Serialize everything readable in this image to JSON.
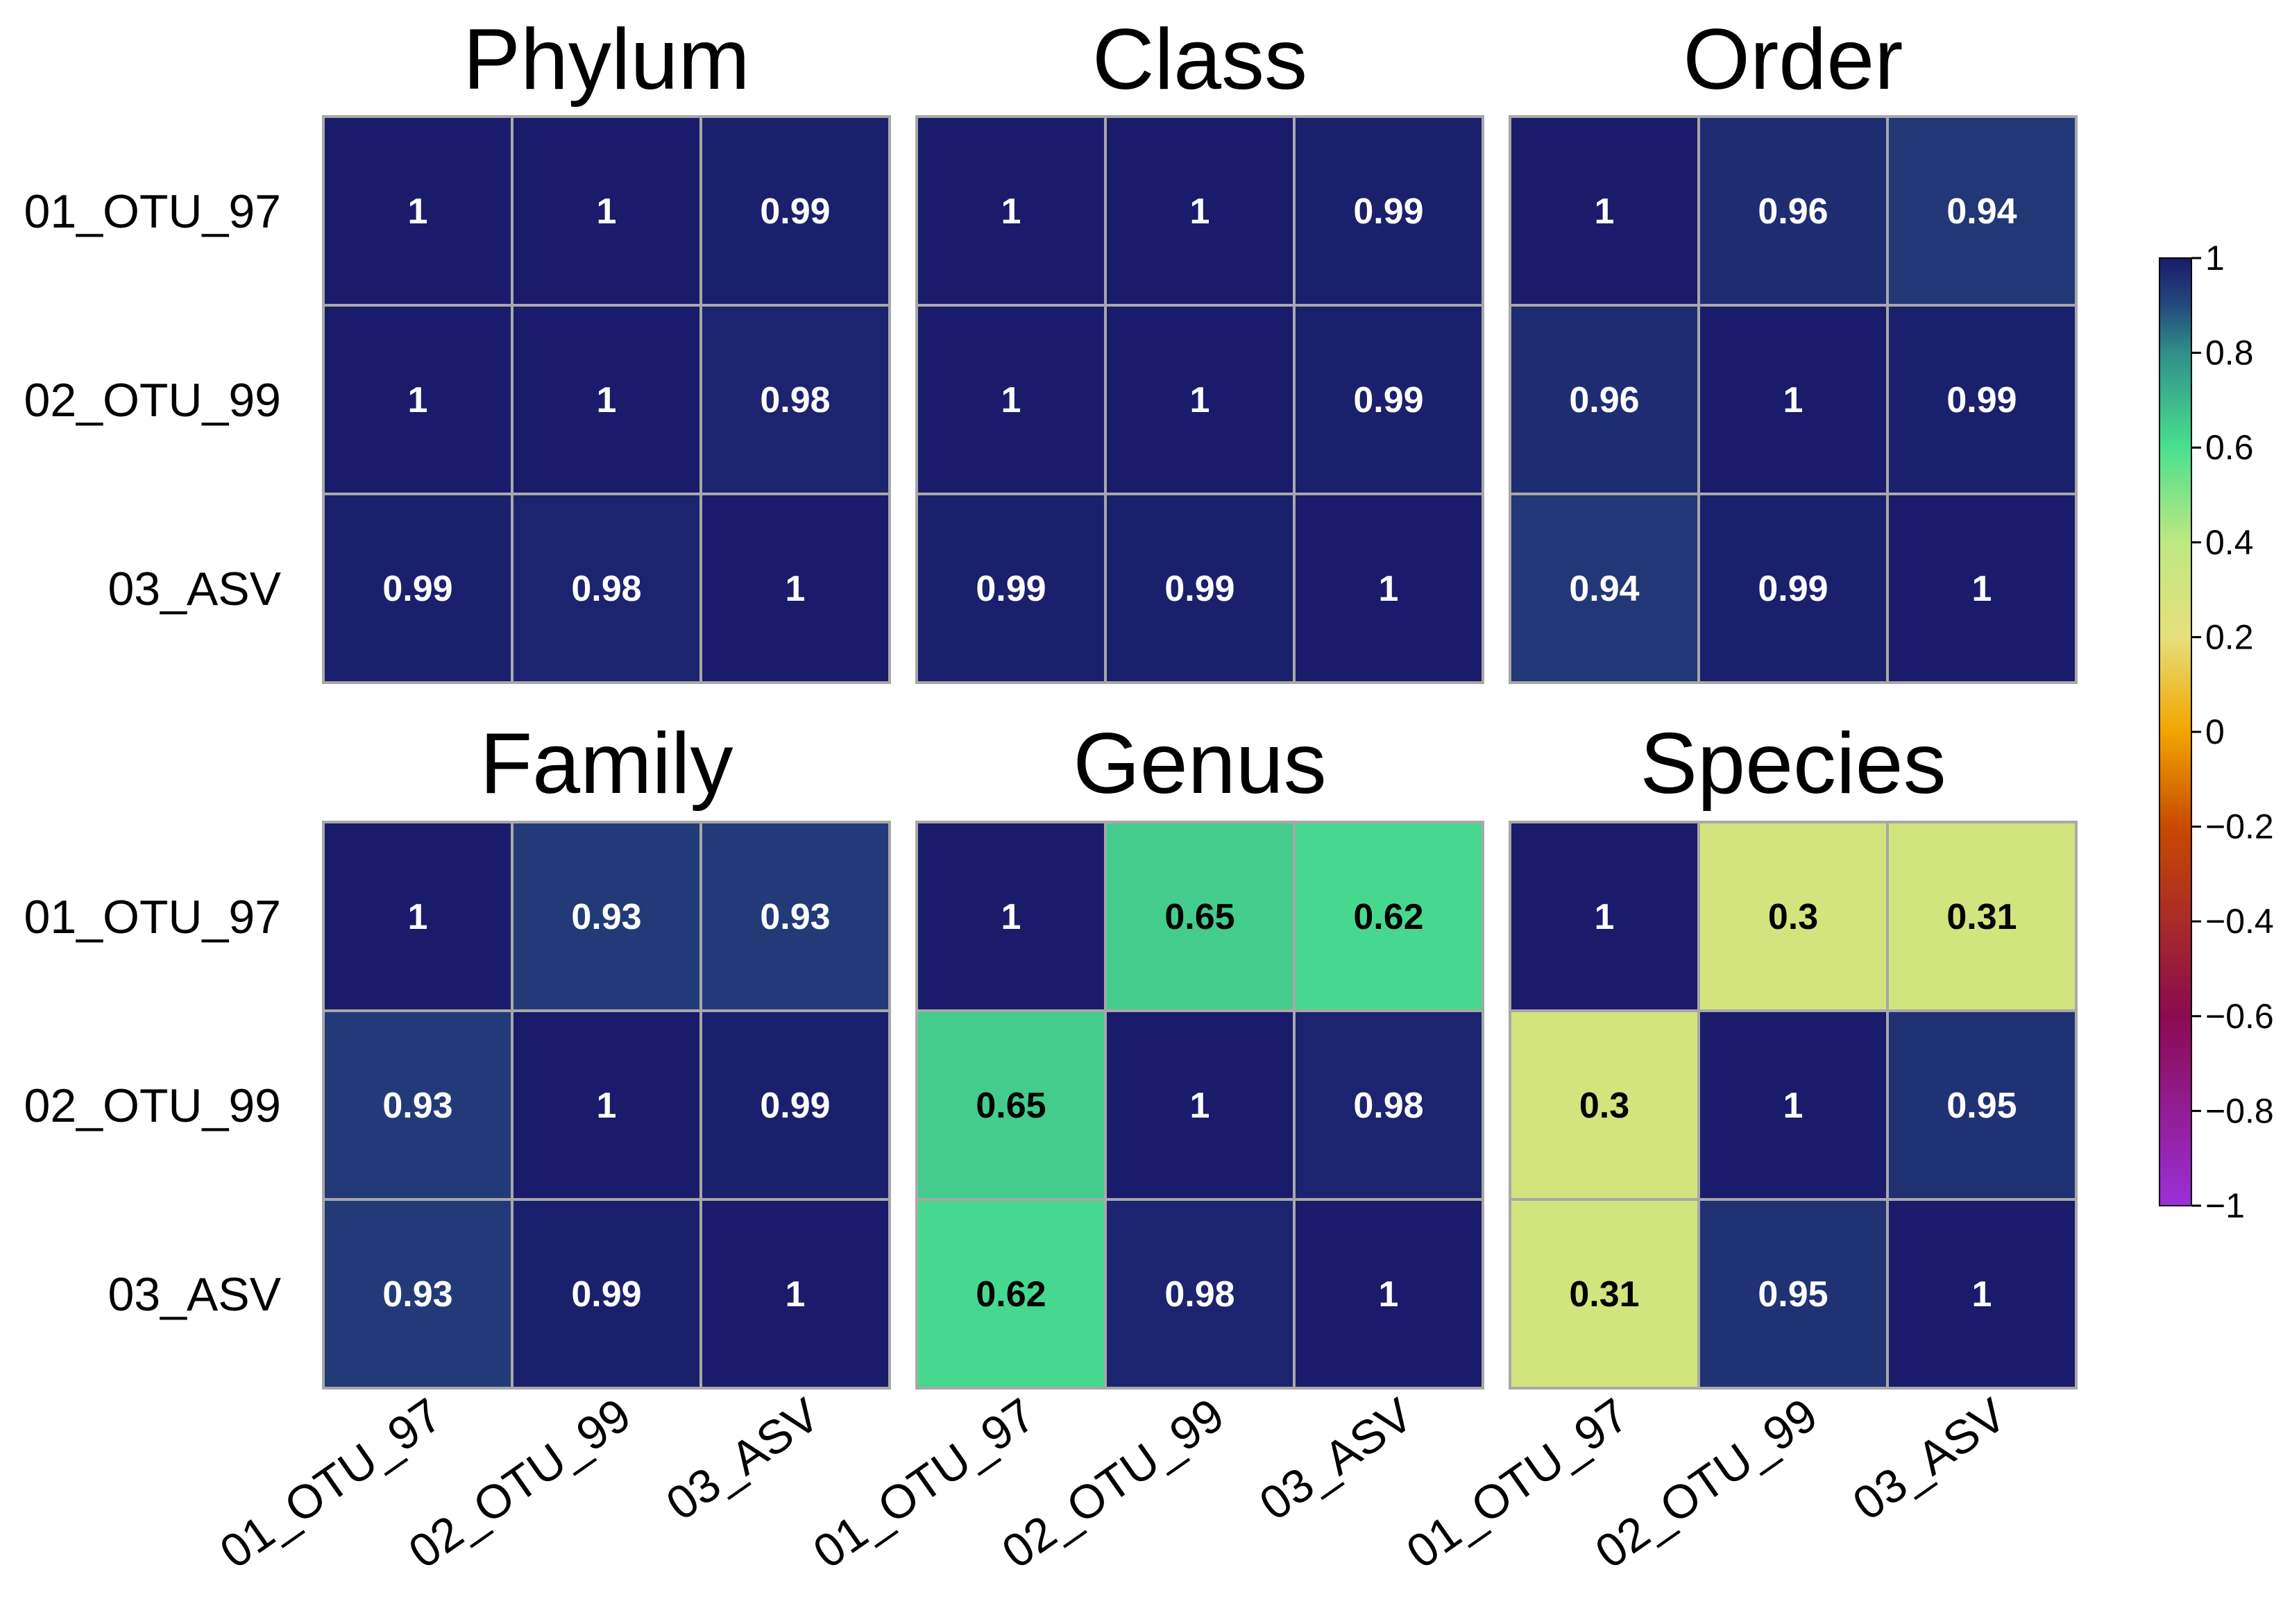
{
  "chart_data": {
    "type": "heatmap",
    "row_labels": [
      "01_OTU_97",
      "02_OTU_99",
      "03_ASV"
    ],
    "col_labels": [
      "01_OTU_97",
      "02_OTU_99",
      "03_ASV"
    ],
    "vmin": -1,
    "vmax": 1,
    "colormap_stops": [
      {
        "value": -1,
        "color": "#9b30d9"
      },
      {
        "value": -0.6,
        "color": "#8b0a50"
      },
      {
        "value": -0.2,
        "color": "#c84a00"
      },
      {
        "value": 0,
        "color": "#f2a400"
      },
      {
        "value": 0.2,
        "color": "#e6df7a"
      },
      {
        "value": 0.4,
        "color": "#bfe882"
      },
      {
        "value": 0.6,
        "color": "#4ae08f"
      },
      {
        "value": 0.8,
        "color": "#2f8f8a"
      },
      {
        "value": 0.9,
        "color": "#25497d"
      },
      {
        "value": 1,
        "color": "#1a1b6b"
      }
    ],
    "colorbar_ticks": [
      {
        "value": 1,
        "label": "1"
      },
      {
        "value": 0.8,
        "label": "0.8"
      },
      {
        "value": 0.6,
        "label": "0.6"
      },
      {
        "value": 0.4,
        "label": "0.4"
      },
      {
        "value": 0.2,
        "label": "0.2"
      },
      {
        "value": 0,
        "label": "0"
      },
      {
        "value": -0.2,
        "label": "−0.2"
      },
      {
        "value": -0.4,
        "label": "−0.4"
      },
      {
        "value": -0.6,
        "label": "−0.6"
      },
      {
        "value": -0.8,
        "label": "−0.8"
      },
      {
        "value": -1,
        "label": "−1"
      }
    ],
    "panels": [
      {
        "title": "Phylum",
        "values": [
          [
            1,
            1,
            0.99
          ],
          [
            1,
            1,
            0.98
          ],
          [
            0.99,
            0.98,
            1
          ]
        ],
        "labels": [
          [
            "1",
            "1",
            "0.99"
          ],
          [
            "1",
            "1",
            "0.98"
          ],
          [
            "0.99",
            "0.98",
            "1"
          ]
        ]
      },
      {
        "title": "Class",
        "values": [
          [
            1,
            1,
            0.99
          ],
          [
            1,
            1,
            0.99
          ],
          [
            0.99,
            0.99,
            1
          ]
        ],
        "labels": [
          [
            "1",
            "1",
            "0.99"
          ],
          [
            "1",
            "1",
            "0.99"
          ],
          [
            "0.99",
            "0.99",
            "1"
          ]
        ]
      },
      {
        "title": "Order",
        "values": [
          [
            1,
            0.96,
            0.94
          ],
          [
            0.96,
            1,
            0.99
          ],
          [
            0.94,
            0.99,
            1
          ]
        ],
        "labels": [
          [
            "1",
            "0.96",
            "0.94"
          ],
          [
            "0.96",
            "1",
            "0.99"
          ],
          [
            "0.94",
            "0.99",
            "1"
          ]
        ]
      },
      {
        "title": "Family",
        "values": [
          [
            1,
            0.93,
            0.93
          ],
          [
            0.93,
            1,
            0.99
          ],
          [
            0.93,
            0.99,
            1
          ]
        ],
        "labels": [
          [
            "1",
            "0.93",
            "0.93"
          ],
          [
            "0.93",
            "1",
            "0.99"
          ],
          [
            "0.93",
            "0.99",
            "1"
          ]
        ]
      },
      {
        "title": "Genus",
        "values": [
          [
            1,
            0.65,
            0.62
          ],
          [
            0.65,
            1,
            0.98
          ],
          [
            0.62,
            0.98,
            1
          ]
        ],
        "labels": [
          [
            "1",
            "0.65",
            "0.62"
          ],
          [
            "0.65",
            "1",
            "0.98"
          ],
          [
            "0.62",
            "0.98",
            "1"
          ]
        ]
      },
      {
        "title": "Species",
        "values": [
          [
            1,
            0.3,
            0.31
          ],
          [
            0.3,
            1,
            0.95
          ],
          [
            0.31,
            0.95,
            1
          ]
        ],
        "labels": [
          [
            "1",
            "0.3",
            "0.31"
          ],
          [
            "0.3",
            "1",
            "0.95"
          ],
          [
            "0.31",
            "0.95",
            "1"
          ]
        ]
      }
    ]
  }
}
